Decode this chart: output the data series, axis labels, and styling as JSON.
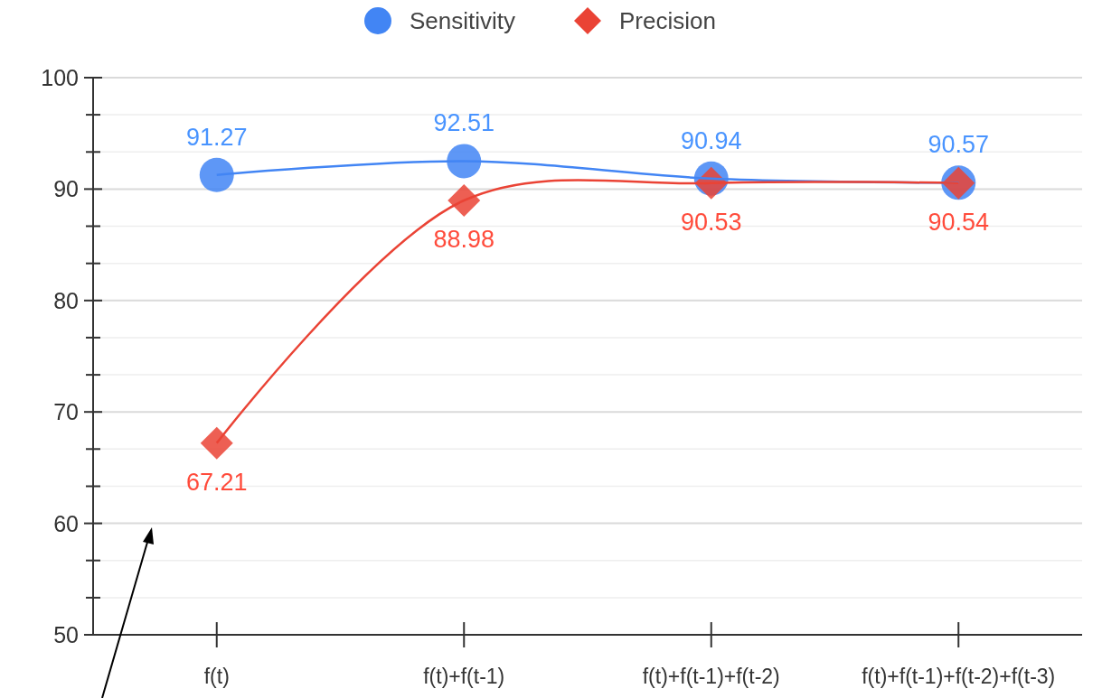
{
  "chart_data": {
    "type": "line",
    "categories": [
      "f(t)",
      "f(t)+f(t-1)",
      "f(t)+f(t-1)+f(t-2)",
      "f(t)+f(t-1)+f(t-2)+f(t-3)"
    ],
    "series": [
      {
        "name": "Sensitivity",
        "color": "#4285f4",
        "marker": "circle",
        "values": [
          91.27,
          92.51,
          90.94,
          90.57
        ]
      },
      {
        "name": "Precision",
        "color": "#ea4335",
        "marker": "diamond",
        "values": [
          67.21,
          88.98,
          90.53,
          90.54
        ]
      }
    ],
    "ylim": [
      50,
      100
    ],
    "yticks": [
      50,
      {
        "value": 53.33,
        "label": null
      },
      {
        "value": 56.67,
        "label": null
      },
      60,
      {
        "value": 63.33,
        "label": null
      },
      {
        "value": 66.67,
        "label": null
      },
      70,
      {
        "value": 73.33,
        "label": null
      },
      {
        "value": 76.67,
        "label": null
      },
      80,
      {
        "value": 83.33,
        "label": null
      },
      {
        "value": 86.67,
        "label": null
      },
      90,
      {
        "value": 93.33,
        "label": null
      },
      {
        "value": 96.67,
        "label": null
      },
      100
    ],
    "grid": true,
    "legend": "top",
    "data_labels": true
  }
}
